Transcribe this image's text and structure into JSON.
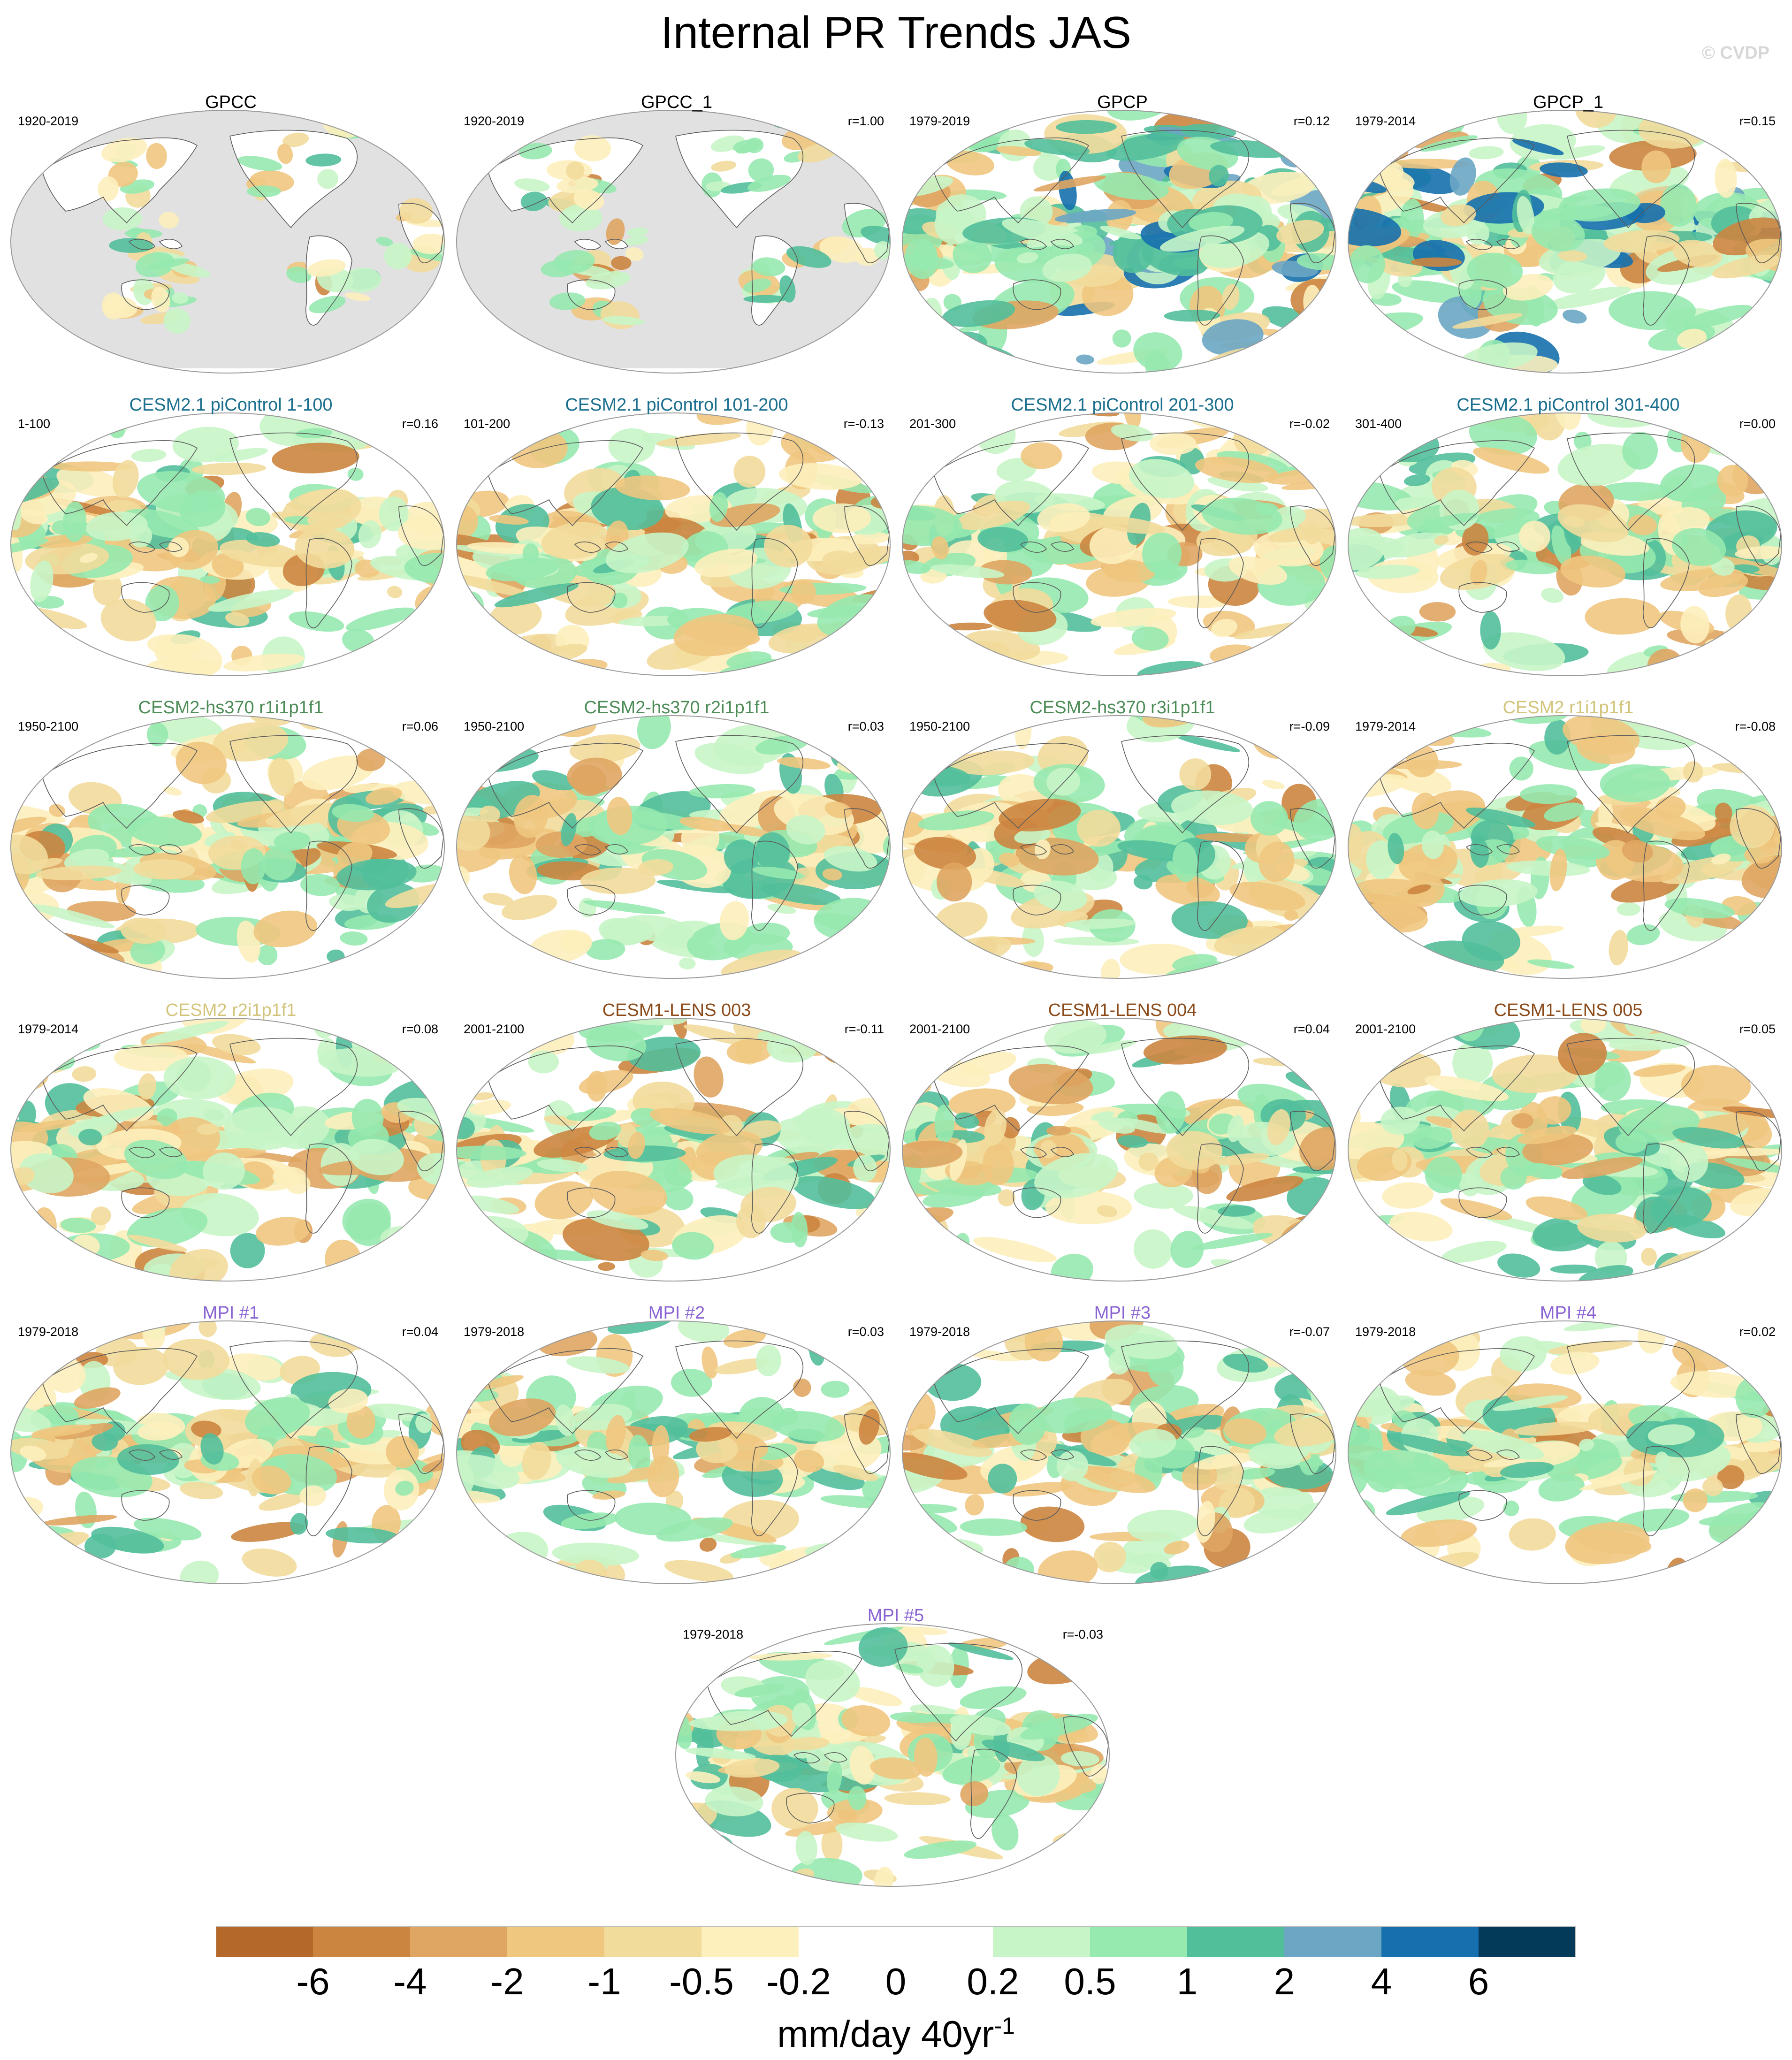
{
  "title": "Internal PR Trends JAS",
  "copyright": "© CVDP",
  "colors": {
    "ocean_missing": "#e1e1e1",
    "coast": "#5a5a5a",
    "outline": "#9a9a9a",
    "title_obs": "#000000",
    "title_cesm21": "#1b6f8e",
    "title_hs370": "#4d8c57",
    "title_cesm2": "#d2c47a",
    "title_lens": "#8b4a19",
    "title_mpi": "#8a63d2"
  },
  "panels": [
    {
      "title": "GPCC",
      "years": "1920-2019",
      "r": "",
      "group": "obs",
      "pattern": "land"
    },
    {
      "title": "GPCC_1",
      "years": "1920-2019",
      "r": "r=1.00",
      "group": "obs",
      "pattern": "land"
    },
    {
      "title": "GPCP",
      "years": "1979-2019",
      "r": "r=0.12",
      "group": "obs",
      "pattern": "full-strong"
    },
    {
      "title": "GPCP_1",
      "years": "1979-2014",
      "r": "r=0.15",
      "group": "obs",
      "pattern": "full-strong"
    },
    {
      "title": "CESM2.1 piControl 1-100",
      "years": "1-100",
      "r": "r=0.16",
      "group": "cesm21",
      "pattern": "full"
    },
    {
      "title": "CESM2.1 piControl 101-200",
      "years": "101-200",
      "r": "r=-0.13",
      "group": "cesm21",
      "pattern": "full"
    },
    {
      "title": "CESM2.1 piControl 201-300",
      "years": "201-300",
      "r": "r=-0.02",
      "group": "cesm21",
      "pattern": "full"
    },
    {
      "title": "CESM2.1 piControl 301-400",
      "years": "301-400",
      "r": "r=0.00",
      "group": "cesm21",
      "pattern": "full"
    },
    {
      "title": "CESM2-hs370 r1i1p1f1",
      "years": "1950-2100",
      "r": "r=0.06",
      "group": "hs370",
      "pattern": "full"
    },
    {
      "title": "CESM2-hs370 r2i1p1f1",
      "years": "1950-2100",
      "r": "r=0.03",
      "group": "hs370",
      "pattern": "full"
    },
    {
      "title": "CESM2-hs370 r3i1p1f1",
      "years": "1950-2100",
      "r": "r=-0.09",
      "group": "hs370",
      "pattern": "full"
    },
    {
      "title": "CESM2 r1i1p1f1",
      "years": "1979-2014",
      "r": "r=-0.08",
      "group": "cesm2",
      "pattern": "full"
    },
    {
      "title": "CESM2 r2i1p1f1",
      "years": "1979-2014",
      "r": "r=0.08",
      "group": "cesm2",
      "pattern": "full"
    },
    {
      "title": "CESM1-LENS 003",
      "years": "2001-2100",
      "r": "r=-0.11",
      "group": "lens",
      "pattern": "full"
    },
    {
      "title": "CESM1-LENS 004",
      "years": "2001-2100",
      "r": "r=0.04",
      "group": "lens",
      "pattern": "full"
    },
    {
      "title": "CESM1-LENS 005",
      "years": "2001-2100",
      "r": "r=0.05",
      "group": "lens",
      "pattern": "full"
    },
    {
      "title": "MPI #1",
      "years": "1979-2018",
      "r": "r=0.04",
      "group": "mpi",
      "pattern": "full"
    },
    {
      "title": "MPI #2",
      "years": "1979-2018",
      "r": "r=0.03",
      "group": "mpi",
      "pattern": "full"
    },
    {
      "title": "MPI #3",
      "years": "1979-2018",
      "r": "r=-0.07",
      "group": "mpi",
      "pattern": "full"
    },
    {
      "title": "MPI #4",
      "years": "1979-2018",
      "r": "r=0.02",
      "group": "mpi",
      "pattern": "full"
    },
    {
      "title": "MPI #5",
      "years": "1979-2018",
      "r": "r=-0.03",
      "group": "mpi",
      "pattern": "full"
    }
  ],
  "colorbar": {
    "colors": [
      "#b4692a",
      "#cc8540",
      "#dfa562",
      "#f0c77f",
      "#f2dc9c",
      "#fdf0bd",
      "#ffffff",
      "#ffffff",
      "#c8f5c8",
      "#96e9af",
      "#52bf9b",
      "#6ba6c4",
      "#1570ad",
      "#033a5a"
    ],
    "tick_labels": [
      "-6",
      "-4",
      "-2",
      "-1",
      "-0.5",
      "-0.2",
      "0",
      "0.2",
      "0.5",
      "1",
      "2",
      "4",
      "6"
    ],
    "unit": "mm/day 40yr",
    "unit_exponent": "-1"
  }
}
